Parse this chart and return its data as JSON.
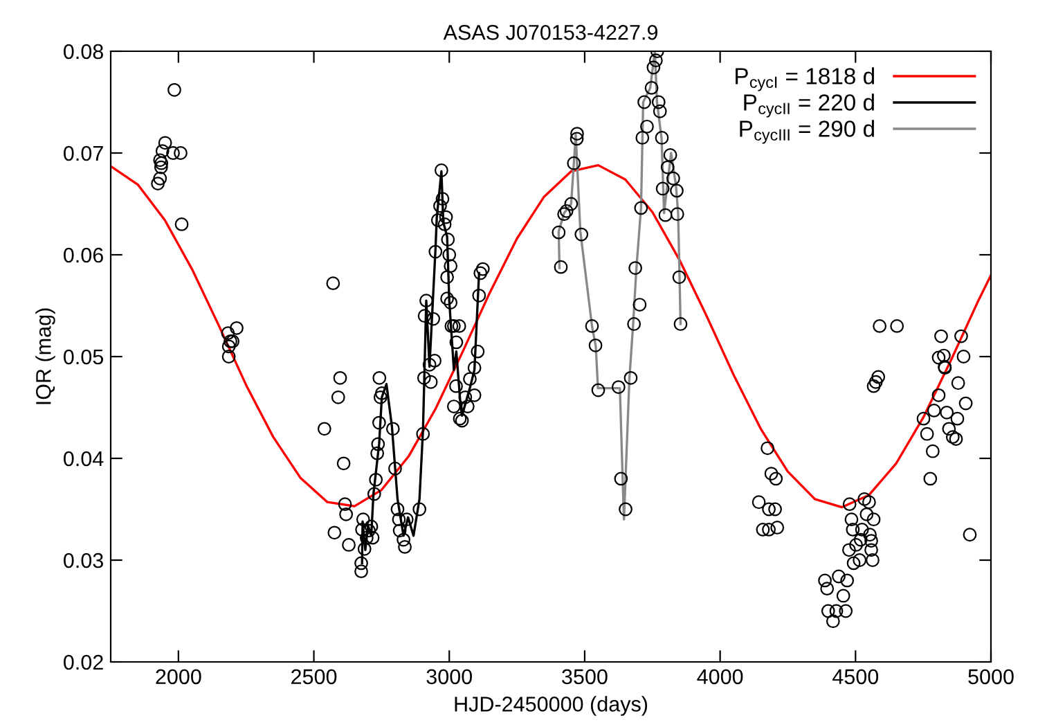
{
  "chart_data": {
    "type": "scatter",
    "title": "ASAS J070153-4227.9",
    "xlabel": "HJD-2450000 (days)",
    "ylabel": "IQR (mag)",
    "xlim": [
      1750,
      5000
    ],
    "xticks": [
      2000,
      2500,
      3000,
      3500,
      4000,
      4500,
      5000
    ],
    "ylim": [
      0.02,
      0.08
    ],
    "yticks": [
      0.02,
      0.03,
      0.04,
      0.05,
      0.06,
      0.07,
      0.08
    ],
    "grid": false,
    "legend": "top right",
    "series": [
      {
        "color": "#000000",
        "marker": "circle",
        "x": [
          1924,
          1932,
          1936,
          1932,
          1941,
          1951,
          1980,
          2008,
          1985,
          2012,
          1937,
          2183,
          2192,
          2200,
          2186,
          2215,
          2186,
          2571,
          2539,
          2597,
          2590,
          2610,
          2615,
          2619,
          2576,
          2629,
          2675,
          2675,
          2682,
          2678,
          2687,
          2695,
          2703,
          2712,
          2717,
          2723,
          2729,
          2734,
          2737,
          2741,
          2746,
          2751,
          2742,
          2792,
          2800,
          2809,
          2814,
          2817,
          2831,
          2836,
          2843,
          2890,
          2903,
          2907,
          2932,
          2909,
          2915,
          2927,
          2941,
          2949,
          2958,
          2966,
          2971,
          2975,
          2983,
          2988,
          2995,
          3000,
          3005,
          2992,
          2992,
          3005,
          3008,
          3017,
          3026,
          3037,
          2946,
          3017,
          3025,
          3039,
          3047,
          3059,
          3068,
          3076,
          3093,
          3093,
          3105,
          3110,
          3115,
          3124,
          3412,
          3404,
          3424,
          3433,
          3450,
          3471,
          3472,
          3460,
          3488,
          3527,
          3540,
          3550,
          3625,
          3634,
          3651,
          3670,
          3682,
          3687,
          3703,
          3713,
          3720,
          3730,
          3747,
          3754,
          3763,
          3768,
          3773,
          3778,
          3785,
          3788,
          3798,
          3806,
          3816,
          3827,
          3840,
          3842,
          3849,
          3854,
          3708,
          4589,
          4653,
          4816,
          4890,
          4807,
          4826,
          4829,
          4899,
          4575,
          4567,
          4584,
          4175,
          4189,
          4206,
          4143,
          4180,
          4203,
          4158,
          4180,
          4211,
          4478,
          4533,
          4550,
          4541,
          4485,
          4567,
          4490,
          4524,
          4553,
          4502,
          4519,
          4558,
          4476,
          4558,
          4515,
          4493,
          4563,
          4387,
          4395,
          4438,
          4469,
          4455,
          4399,
          4429,
          4464,
          4417,
          4751,
          4764,
          4785,
          4776,
          4790,
          4807,
          4837,
          4845,
          4859,
          4871,
          4876,
          4879,
          4907,
          4922,
          4830
        ],
        "values": [
          0.067,
          0.0675,
          0.0686,
          0.0693,
          0.0702,
          0.071,
          0.07,
          0.07,
          0.0762,
          0.063,
          0.069,
          0.0523,
          0.0515,
          0.0515,
          0.051,
          0.0528,
          0.05,
          0.0572,
          0.0429,
          0.0479,
          0.046,
          0.0395,
          0.0355,
          0.0345,
          0.0327,
          0.0315,
          0.0297,
          0.0289,
          0.034,
          0.033,
          0.0311,
          0.0322,
          0.0329,
          0.0333,
          0.0322,
          0.0365,
          0.0379,
          0.0405,
          0.0414,
          0.0435,
          0.046,
          0.0464,
          0.0479,
          0.0429,
          0.039,
          0.035,
          0.034,
          0.0329,
          0.032,
          0.0313,
          0.034,
          0.035,
          0.0424,
          0.0479,
          0.0475,
          0.054,
          0.0555,
          0.0492,
          0.0537,
          0.0603,
          0.0634,
          0.0648,
          0.0683,
          0.0655,
          0.063,
          0.0637,
          0.0615,
          0.06,
          0.0589,
          0.0578,
          0.0557,
          0.0553,
          0.053,
          0.053,
          0.0514,
          0.053,
          0.0496,
          0.0451,
          0.0471,
          0.0439,
          0.0437,
          0.046,
          0.0451,
          0.0478,
          0.0489,
          0.0462,
          0.0505,
          0.056,
          0.0582,
          0.0586,
          0.0588,
          0.0622,
          0.064,
          0.0643,
          0.065,
          0.0714,
          0.0719,
          0.069,
          0.062,
          0.053,
          0.0511,
          0.0467,
          0.047,
          0.038,
          0.035,
          0.0479,
          0.0532,
          0.0587,
          0.0551,
          0.0715,
          0.075,
          0.0726,
          0.0764,
          0.0784,
          0.0791,
          0.08,
          0.075,
          0.0741,
          0.0715,
          0.0665,
          0.0639,
          0.0686,
          0.0698,
          0.0675,
          0.0663,
          0.064,
          0.0578,
          0.0532,
          0.0646,
          0.053,
          0.053,
          0.052,
          0.052,
          0.0499,
          0.0501,
          0.049,
          0.05,
          0.0475,
          0.0471,
          0.048,
          0.041,
          0.0385,
          0.038,
          0.0357,
          0.035,
          0.035,
          0.033,
          0.033,
          0.0332,
          0.0355,
          0.036,
          0.0357,
          0.0345,
          0.034,
          0.034,
          0.033,
          0.033,
          0.0325,
          0.0315,
          0.032,
          0.0319,
          0.031,
          0.031,
          0.03,
          0.0297,
          0.03,
          0.028,
          0.0272,
          0.0284,
          0.028,
          0.0265,
          0.025,
          0.025,
          0.025,
          0.024,
          0.0439,
          0.0424,
          0.0407,
          0.038,
          0.0447,
          0.0462,
          0.0445,
          0.0429,
          0.0421,
          0.0419,
          0.0439,
          0.0474,
          0.0454,
          0.0325,
          0.0489
        ]
      },
      {
        "type": "line",
        "name": "P$_{cycI}$ = 1818 d",
        "color": "#ff0000",
        "x": [
          1750,
          1850,
          1950,
          2050,
          2150,
          2250,
          2350,
          2450,
          2550,
          2650,
          2750,
          2850,
          2950,
          3050,
          3150,
          3250,
          3350,
          3450,
          3550,
          3650,
          3750,
          3850,
          3950,
          4050,
          4150,
          4250,
          4350,
          4450,
          4550,
          4650,
          4750,
          4850,
          4950,
          5000
        ],
        "values": [
          0.0687,
          0.0669,
          0.0634,
          0.0586,
          0.053,
          0.0472,
          0.0421,
          0.0381,
          0.0357,
          0.0353,
          0.0369,
          0.0402,
          0.0449,
          0.0505,
          0.0563,
          0.0616,
          0.0657,
          0.0682,
          0.0688,
          0.0674,
          0.0642,
          0.0595,
          0.054,
          0.0482,
          0.0429,
          0.0387,
          0.036,
          0.0352,
          0.0364,
          0.0395,
          0.044,
          0.0495,
          0.0553,
          0.058
        ]
      },
      {
        "type": "line",
        "name": "P$_{cycII}$ = 220 d",
        "color": "#000000",
        "x": [
          2678,
          2680,
          2690,
          2700,
          2712,
          2720,
          2741,
          2751,
          2768,
          2788,
          2809,
          2831,
          2848,
          2868,
          2890,
          2903,
          2915,
          2927,
          2949,
          2954,
          2971,
          2978,
          2992,
          3000,
          3017,
          3026,
          3042,
          3047,
          3076,
          3093,
          3110
        ],
        "values": [
          0.0297,
          0.0338,
          0.031,
          0.0334,
          0.0324,
          0.0365,
          0.0414,
          0.046,
          0.0473,
          0.0432,
          0.036,
          0.0324,
          0.0342,
          0.0324,
          0.036,
          0.0428,
          0.0555,
          0.049,
          0.0605,
          0.0637,
          0.0682,
          0.0632,
          0.0618,
          0.0555,
          0.0487,
          0.0505,
          0.0451,
          0.0442,
          0.0469,
          0.0487,
          0.0582
        ]
      },
      {
        "type": "line",
        "name": "P$_{cycIII}$ = 290 d",
        "color": "#888888",
        "x": [
          3407,
          3404,
          3424,
          3450,
          3467,
          3484,
          3527,
          3541,
          3549,
          3630,
          3640,
          3645,
          3665,
          3679,
          3691,
          3708,
          3716,
          3742,
          3759,
          3767,
          3784,
          3793,
          3819,
          3837,
          3845,
          3854
        ],
        "values": [
          0.0587,
          0.0623,
          0.0641,
          0.065,
          0.0718,
          0.0623,
          0.053,
          0.051,
          0.0469,
          0.0469,
          0.0381,
          0.034,
          0.0478,
          0.0532,
          0.0587,
          0.0646,
          0.075,
          0.0764,
          0.08,
          0.075,
          0.0714,
          0.0641,
          0.07,
          0.0668,
          0.0641,
          0.0532
        ]
      }
    ]
  }
}
